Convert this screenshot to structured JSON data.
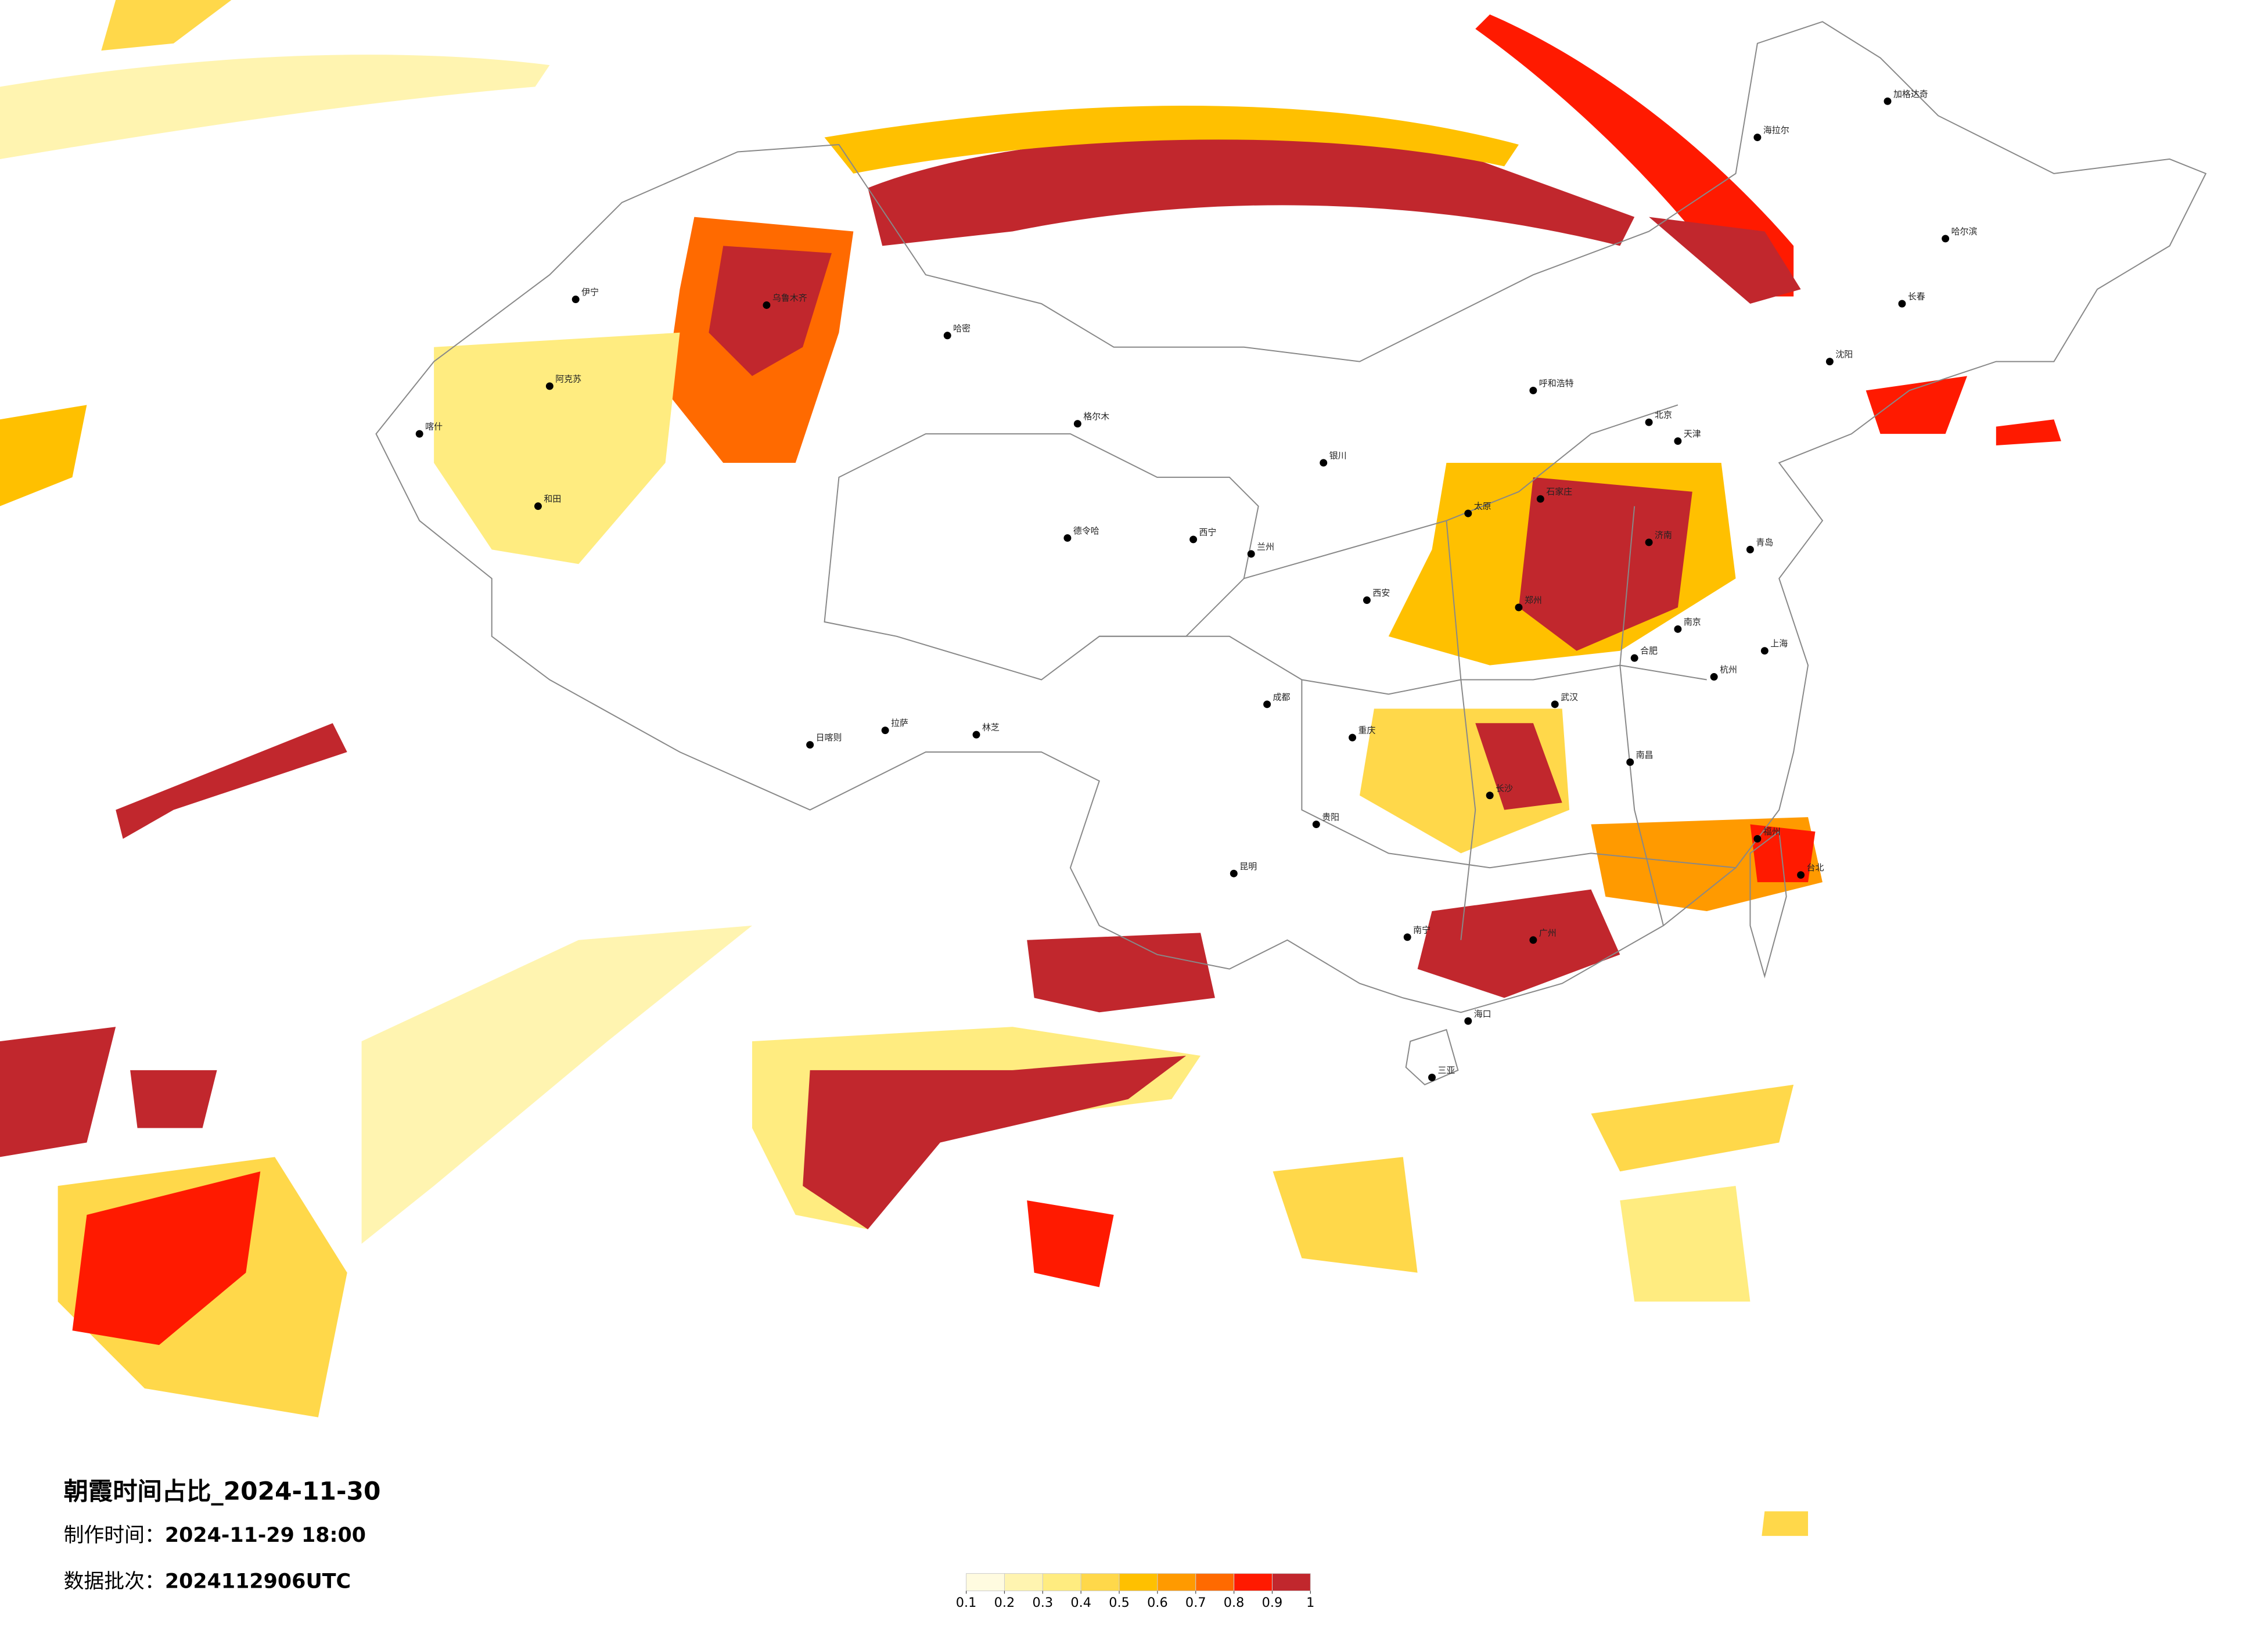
{
  "title": "朝霞时间占比_2024-11-30",
  "made_label": "制作时间：",
  "made_time": "2024-11-29 18:00",
  "batch_label": "数据批次：",
  "batch": "2024112906UTC",
  "legend": {
    "colors": [
      "#fffbe0",
      "#fff4b0",
      "#ffec80",
      "#ffd84a",
      "#ffc000",
      "#ff9a00",
      "#ff6a00",
      "#ff1a00",
      "#c1272d"
    ],
    "ticks": [
      0.1,
      0.2,
      0.3,
      0.4,
      0.5,
      0.6,
      0.7,
      0.8,
      0.9,
      1
    ]
  },
  "cities": [
    "乌鲁木齐",
    "哈密",
    "伊宁",
    "阿克苏",
    "喀什",
    "和田",
    "格尔木",
    "德令哈",
    "西宁",
    "兰州",
    "拉萨",
    "日喀则",
    "林芝",
    "成都",
    "重庆",
    "昆明",
    "贵阳",
    "南宁",
    "广州",
    "海口",
    "长沙",
    "武汉",
    "南昌",
    "福州",
    "杭州",
    "上海",
    "南京",
    "合肥",
    "郑州",
    "西安",
    "太原",
    "石家庄",
    "北京",
    "天津",
    "济南",
    "青岛",
    "沈阳",
    "长春",
    "哈尔滨",
    "呼和浩特",
    "银川",
    "海拉尔",
    "台北",
    "三亚",
    "加格达奇"
  ]
}
